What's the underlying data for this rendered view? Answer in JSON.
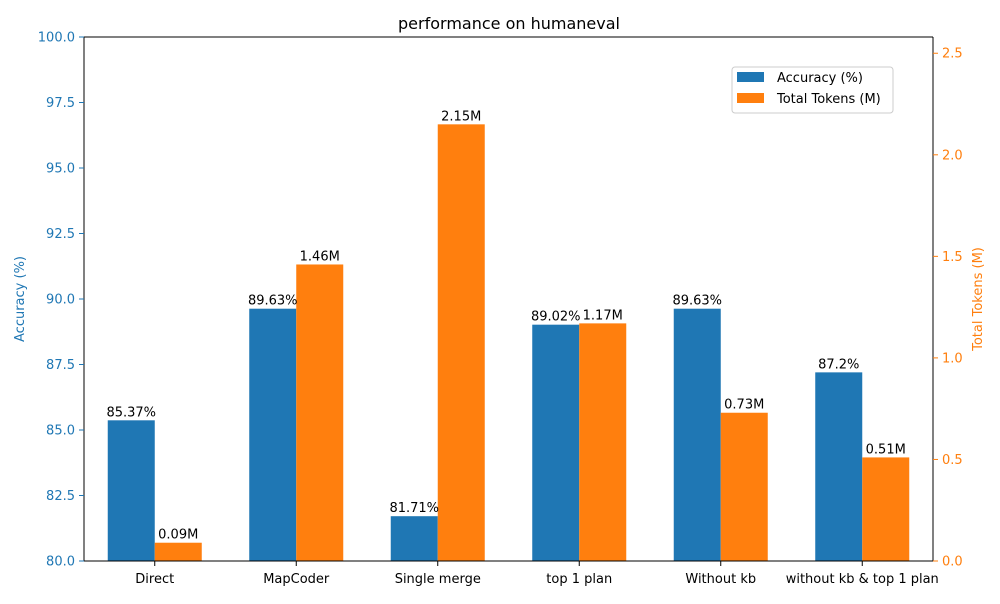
{
  "chart_data": {
    "type": "bar",
    "title": "performance on humaneval",
    "xlabel": "",
    "categories": [
      "Direct",
      "MapCoder",
      "Single merge",
      "top 1 plan",
      "Without kb",
      "without kb & top 1 plan"
    ],
    "series": [
      {
        "name": "Accuracy (%)",
        "axis": "left",
        "color": "#1f77b4",
        "values": [
          85.37,
          89.63,
          81.71,
          89.02,
          89.63,
          87.2
        ],
        "labels": [
          "85.37%",
          "89.63%",
          "81.71%",
          "89.02%",
          "89.63%",
          "87.2%"
        ]
      },
      {
        "name": "Total Tokens (M)",
        "axis": "right",
        "color": "#ff7f0e",
        "values": [
          0.09,
          1.46,
          2.15,
          1.17,
          0.73,
          0.51
        ],
        "labels": [
          "0.09M",
          "1.46M",
          "2.15M",
          "1.17M",
          "0.73M",
          "0.51M"
        ]
      }
    ],
    "y_left": {
      "label": "Accuracy (%)",
      "color": "#1f77b4",
      "ylim": [
        80,
        100
      ],
      "ticks": [
        "80.0",
        "82.5",
        "85.0",
        "87.5",
        "90.0",
        "92.5",
        "95.0",
        "97.5",
        "100.0"
      ]
    },
    "y_right": {
      "label": "Total Tokens (M)",
      "color": "#ff7f0e",
      "ylim": [
        0,
        2.58
      ],
      "ticks": [
        "0.0",
        "0.5",
        "1.0",
        "1.5",
        "2.0",
        "2.5"
      ]
    },
    "legend": {
      "placement": "upper-right"
    },
    "grid": false
  }
}
